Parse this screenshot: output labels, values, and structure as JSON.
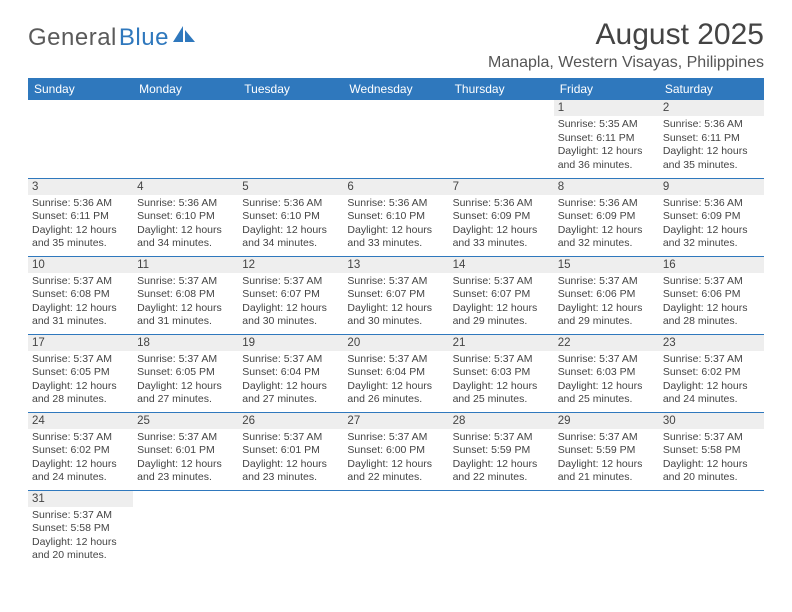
{
  "logo": {
    "textA": "General",
    "textB": "Blue"
  },
  "title": "August 2025",
  "location": "Manapla, Western Visayas, Philippines",
  "colors": {
    "brand": "#2f78bd",
    "dayband": "#eeeeee",
    "text": "#444444"
  },
  "calendar": {
    "headers": [
      "Sunday",
      "Monday",
      "Tuesday",
      "Wednesday",
      "Thursday",
      "Friday",
      "Saturday"
    ],
    "start_day_index": 5,
    "days": [
      {
        "n": 1,
        "sr": "5:35 AM",
        "ss": "6:11 PM",
        "dh": 12,
        "dm": 36
      },
      {
        "n": 2,
        "sr": "5:36 AM",
        "ss": "6:11 PM",
        "dh": 12,
        "dm": 35
      },
      {
        "n": 3,
        "sr": "5:36 AM",
        "ss": "6:11 PM",
        "dh": 12,
        "dm": 35
      },
      {
        "n": 4,
        "sr": "5:36 AM",
        "ss": "6:10 PM",
        "dh": 12,
        "dm": 34
      },
      {
        "n": 5,
        "sr": "5:36 AM",
        "ss": "6:10 PM",
        "dh": 12,
        "dm": 34
      },
      {
        "n": 6,
        "sr": "5:36 AM",
        "ss": "6:10 PM",
        "dh": 12,
        "dm": 33
      },
      {
        "n": 7,
        "sr": "5:36 AM",
        "ss": "6:09 PM",
        "dh": 12,
        "dm": 33
      },
      {
        "n": 8,
        "sr": "5:36 AM",
        "ss": "6:09 PM",
        "dh": 12,
        "dm": 32
      },
      {
        "n": 9,
        "sr": "5:36 AM",
        "ss": "6:09 PM",
        "dh": 12,
        "dm": 32
      },
      {
        "n": 10,
        "sr": "5:37 AM",
        "ss": "6:08 PM",
        "dh": 12,
        "dm": 31
      },
      {
        "n": 11,
        "sr": "5:37 AM",
        "ss": "6:08 PM",
        "dh": 12,
        "dm": 31
      },
      {
        "n": 12,
        "sr": "5:37 AM",
        "ss": "6:07 PM",
        "dh": 12,
        "dm": 30
      },
      {
        "n": 13,
        "sr": "5:37 AM",
        "ss": "6:07 PM",
        "dh": 12,
        "dm": 30
      },
      {
        "n": 14,
        "sr": "5:37 AM",
        "ss": "6:07 PM",
        "dh": 12,
        "dm": 29
      },
      {
        "n": 15,
        "sr": "5:37 AM",
        "ss": "6:06 PM",
        "dh": 12,
        "dm": 29
      },
      {
        "n": 16,
        "sr": "5:37 AM",
        "ss": "6:06 PM",
        "dh": 12,
        "dm": 28
      },
      {
        "n": 17,
        "sr": "5:37 AM",
        "ss": "6:05 PM",
        "dh": 12,
        "dm": 28
      },
      {
        "n": 18,
        "sr": "5:37 AM",
        "ss": "6:05 PM",
        "dh": 12,
        "dm": 27
      },
      {
        "n": 19,
        "sr": "5:37 AM",
        "ss": "6:04 PM",
        "dh": 12,
        "dm": 27
      },
      {
        "n": 20,
        "sr": "5:37 AM",
        "ss": "6:04 PM",
        "dh": 12,
        "dm": 26
      },
      {
        "n": 21,
        "sr": "5:37 AM",
        "ss": "6:03 PM",
        "dh": 12,
        "dm": 25
      },
      {
        "n": 22,
        "sr": "5:37 AM",
        "ss": "6:03 PM",
        "dh": 12,
        "dm": 25
      },
      {
        "n": 23,
        "sr": "5:37 AM",
        "ss": "6:02 PM",
        "dh": 12,
        "dm": 24
      },
      {
        "n": 24,
        "sr": "5:37 AM",
        "ss": "6:02 PM",
        "dh": 12,
        "dm": 24
      },
      {
        "n": 25,
        "sr": "5:37 AM",
        "ss": "6:01 PM",
        "dh": 12,
        "dm": 23
      },
      {
        "n": 26,
        "sr": "5:37 AM",
        "ss": "6:01 PM",
        "dh": 12,
        "dm": 23
      },
      {
        "n": 27,
        "sr": "5:37 AM",
        "ss": "6:00 PM",
        "dh": 12,
        "dm": 22
      },
      {
        "n": 28,
        "sr": "5:37 AM",
        "ss": "5:59 PM",
        "dh": 12,
        "dm": 22
      },
      {
        "n": 29,
        "sr": "5:37 AM",
        "ss": "5:59 PM",
        "dh": 12,
        "dm": 21
      },
      {
        "n": 30,
        "sr": "5:37 AM",
        "ss": "5:58 PM",
        "dh": 12,
        "dm": 20
      },
      {
        "n": 31,
        "sr": "5:37 AM",
        "ss": "5:58 PM",
        "dh": 12,
        "dm": 20
      }
    ]
  }
}
